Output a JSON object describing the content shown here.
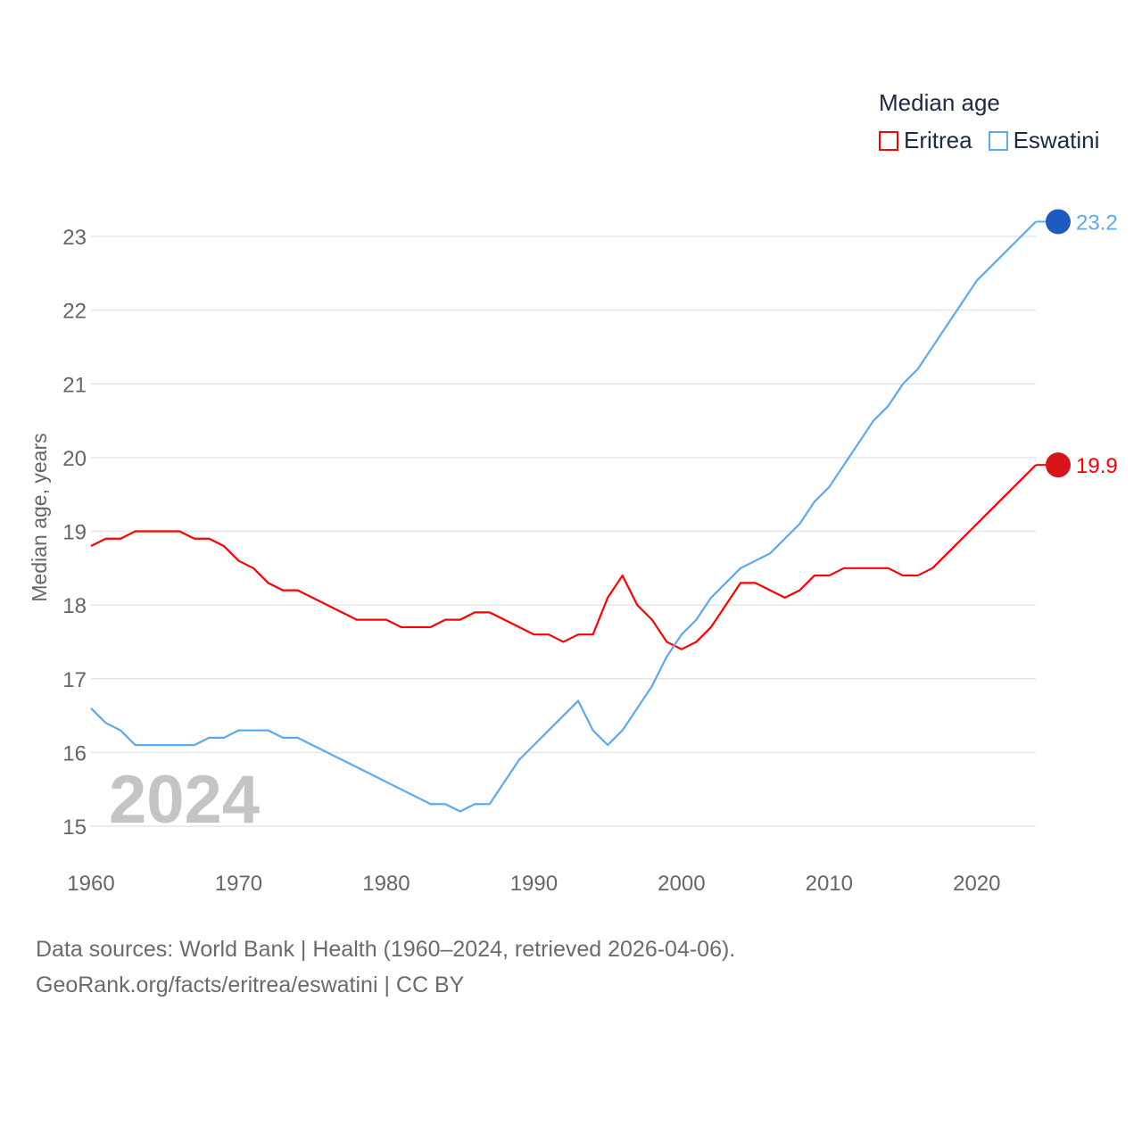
{
  "chart_data": {
    "type": "line",
    "title": "Median age",
    "xlabel": "",
    "ylabel": "Median age, years",
    "xlim": [
      1960,
      2024
    ],
    "ylim": [
      15,
      23
    ],
    "x_ticks": [
      "1960",
      "1970",
      "1980",
      "1990",
      "2000",
      "2010",
      "2020"
    ],
    "y_ticks": [
      "15",
      "16",
      "17",
      "18",
      "19",
      "20",
      "21",
      "22",
      "23"
    ],
    "grid": true,
    "legend_placement": "top-right",
    "year_watermark": "2024",
    "x": [
      1960,
      1961,
      1962,
      1963,
      1964,
      1965,
      1966,
      1967,
      1968,
      1969,
      1970,
      1971,
      1972,
      1973,
      1974,
      1975,
      1976,
      1977,
      1978,
      1979,
      1980,
      1981,
      1982,
      1983,
      1984,
      1985,
      1986,
      1987,
      1988,
      1989,
      1990,
      1991,
      1992,
      1993,
      1994,
      1995,
      1996,
      1997,
      1998,
      1999,
      2000,
      2001,
      2002,
      2003,
      2004,
      2005,
      2006,
      2007,
      2008,
      2009,
      2010,
      2011,
      2012,
      2013,
      2014,
      2015,
      2016,
      2017,
      2018,
      2019,
      2020,
      2021,
      2022,
      2023,
      2024
    ],
    "series": [
      {
        "name": "Eritrea",
        "color": "#ff0000",
        "end_label": "19.9",
        "values": [
          18.8,
          18.9,
          18.9,
          19.0,
          19.0,
          19.0,
          19.0,
          18.9,
          18.9,
          18.8,
          18.6,
          18.5,
          18.3,
          18.2,
          18.2,
          18.1,
          18.0,
          17.9,
          17.8,
          17.8,
          17.8,
          17.7,
          17.7,
          17.7,
          17.8,
          17.8,
          17.9,
          17.9,
          17.8,
          17.7,
          17.6,
          17.6,
          17.5,
          17.6,
          17.6,
          18.1,
          18.4,
          18.0,
          17.8,
          17.5,
          17.4,
          17.5,
          17.7,
          18.0,
          18.3,
          18.3,
          18.2,
          18.1,
          18.2,
          18.4,
          18.4,
          18.5,
          18.5,
          18.5,
          18.5,
          18.4,
          18.4,
          18.5,
          18.7,
          18.9,
          19.1,
          19.3,
          19.5,
          19.7,
          19.9
        ]
      },
      {
        "name": "Eswatini",
        "color": "#5ea8ee",
        "end_label": "23.2",
        "values": [
          16.6,
          16.4,
          16.3,
          16.1,
          16.1,
          16.1,
          16.1,
          16.1,
          16.2,
          16.2,
          16.3,
          16.3,
          16.3,
          16.2,
          16.2,
          16.1,
          16.0,
          15.9,
          15.8,
          15.7,
          15.6,
          15.5,
          15.4,
          15.3,
          15.3,
          15.2,
          15.3,
          15.3,
          15.6,
          15.9,
          16.1,
          16.3,
          16.5,
          16.7,
          16.3,
          16.1,
          16.3,
          16.6,
          16.9,
          17.3,
          17.6,
          17.8,
          18.1,
          18.3,
          18.5,
          18.6,
          18.7,
          18.9,
          19.1,
          19.4,
          19.6,
          19.9,
          20.2,
          20.5,
          20.7,
          21.0,
          21.2,
          21.5,
          21.8,
          22.1,
          22.4,
          22.6,
          22.8,
          23.0,
          23.2
        ]
      }
    ]
  },
  "footer": {
    "line1": "Data sources: World Bank | Health (1960–2024, retrieved 2026-04-06).",
    "line2": "GeoRank.org/facts/eritrea/eswatini | CC BY"
  }
}
